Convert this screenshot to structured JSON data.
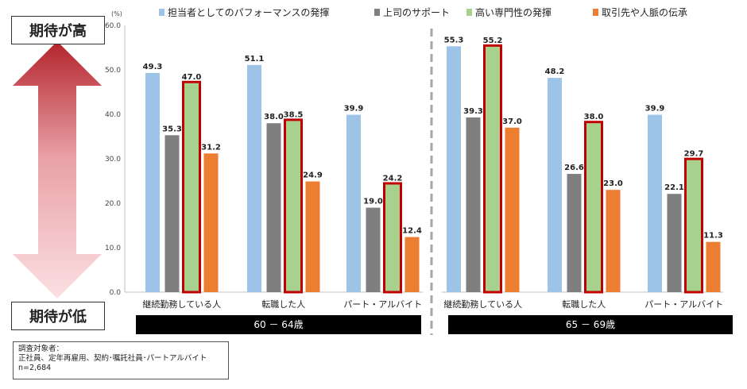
{
  "expectation_scale": {
    "high_label": "期待が高",
    "low_label": "期待が低"
  },
  "note": {
    "line1": "調査対象者：",
    "line2": "正社員、定年再雇用、契約･嘱託社員･パートアルバイト",
    "line3": "n=2,684"
  },
  "colors": {
    "performance": "#9dc3e6",
    "support": "#7f7f7f",
    "expertise": "#a9d18e",
    "network": "#ed7d31",
    "highlight_border": "#c00000",
    "group_bar": "#000000",
    "arrow_top": "#b4242c",
    "arrow_bottom": "#fbe0e2"
  },
  "chart_data": {
    "type": "bar",
    "unit_label": "(%)",
    "ylim": [
      0,
      60
    ],
    "yticks": [
      "0.0",
      "10.0",
      "20.0",
      "30.0",
      "40.0",
      "50.0",
      "60.0"
    ],
    "grid": false,
    "legend_position": "top",
    "highlighted_series": "高い専門性の発揮",
    "groups": [
      {
        "label": "60 － 64歳",
        "categories": [
          "継続勤務している人",
          "転職した人",
          "パート・アルバイト"
        ],
        "series": [
          {
            "name": "担当者としてのパフォーマンスの発揮",
            "values": [
              49.3,
              51.1,
              39.9
            ]
          },
          {
            "name": "上司のサポート",
            "values": [
              35.3,
              38.0,
              19.0
            ]
          },
          {
            "name": "高い専門性の発揮",
            "values": [
              47.0,
              38.5,
              24.2
            ]
          },
          {
            "name": "取引先や人脈の伝承",
            "values": [
              31.2,
              24.9,
              12.4
            ]
          }
        ]
      },
      {
        "label": "65 － 69歳",
        "categories": [
          "継続勤務している人",
          "転職した人",
          "パート・アルバイト"
        ],
        "series": [
          {
            "name": "担当者としてのパフォーマンスの発揮",
            "values": [
              55.3,
              48.2,
              39.9
            ]
          },
          {
            "name": "上司のサポート",
            "values": [
              39.3,
              26.6,
              22.1
            ]
          },
          {
            "name": "高い専門性の発揮",
            "values": [
              55.2,
              38.0,
              29.7
            ]
          },
          {
            "name": "取引先や人脈の伝承",
            "values": [
              37.0,
              23.0,
              11.3
            ]
          }
        ]
      }
    ]
  }
}
